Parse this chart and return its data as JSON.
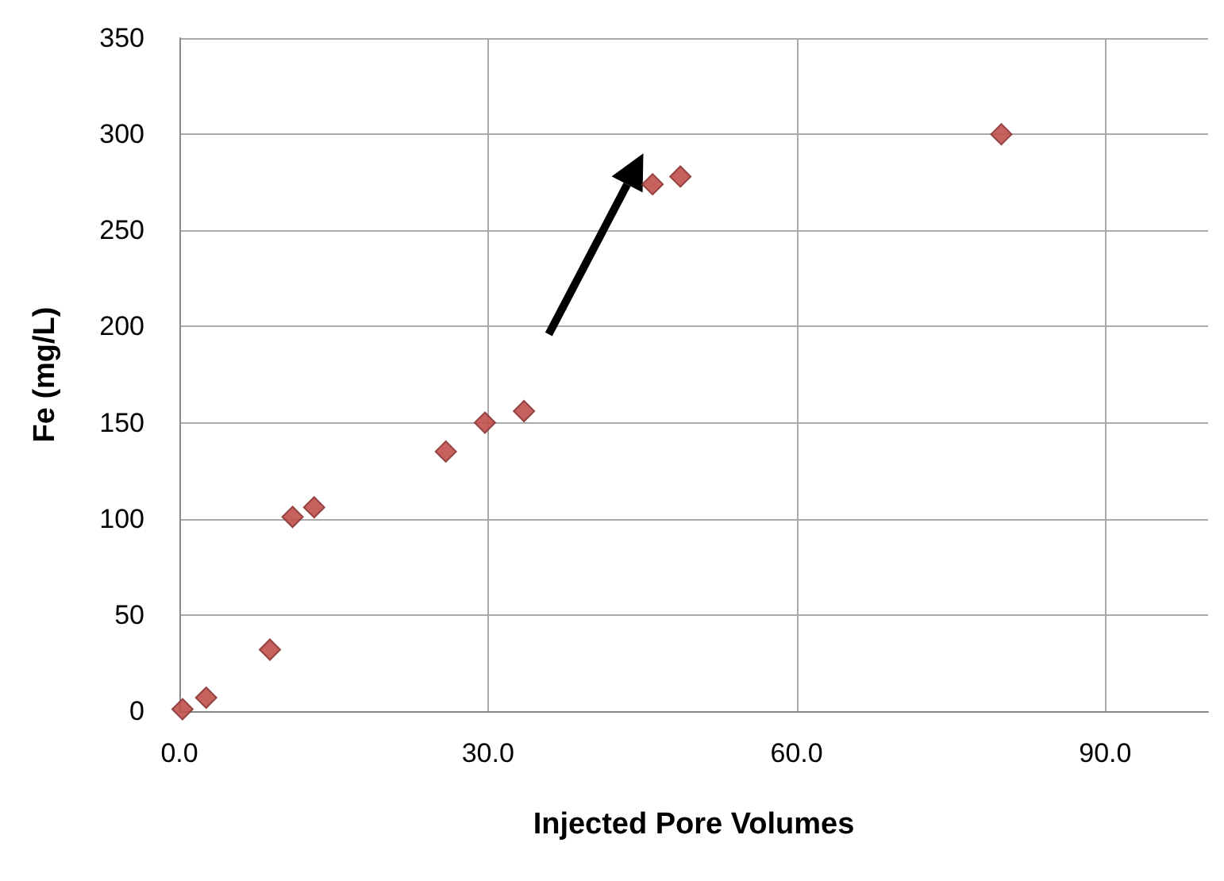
{
  "chart_data": {
    "type": "scatter",
    "xlabel": "Injected Pore Volumes",
    "ylabel": "Fe (mg/L)",
    "x": [
      0.3,
      2.6,
      8.8,
      11.0,
      13.1,
      25.9,
      29.7,
      33.5,
      46.0,
      48.7,
      79.9
    ],
    "series": [
      {
        "color": "#c0504d",
        "values": [
          1,
          7,
          32,
          101,
          106,
          135,
          150,
          156,
          274,
          278,
          300
        ]
      }
    ],
    "xlim": [
      0,
      100
    ],
    "xticks": [
      {
        "value": 0,
        "label": "0.0"
      },
      {
        "value": 30,
        "label": "30.0"
      },
      {
        "value": 60,
        "label": "60.0"
      },
      {
        "value": 90,
        "label": "90.0"
      }
    ],
    "ylim": [
      0,
      350
    ],
    "yticks": [
      0,
      50,
      100,
      150,
      200,
      250,
      300,
      350
    ],
    "grid": true,
    "marker": "diamond"
  }
}
